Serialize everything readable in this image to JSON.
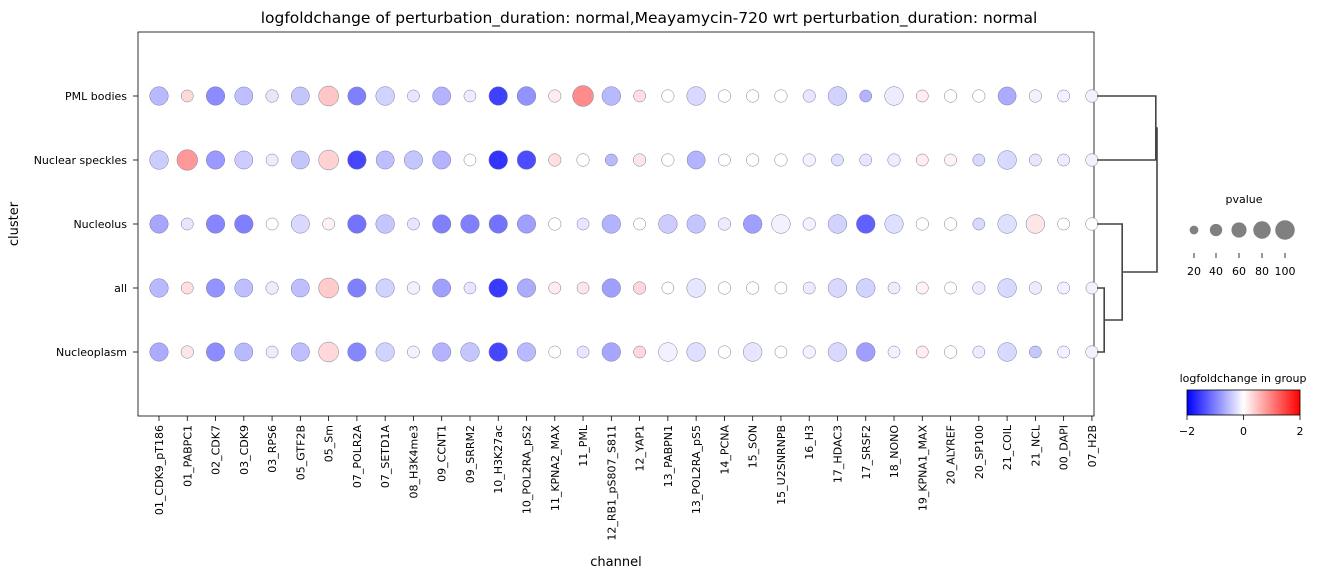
{
  "chart_data": {
    "type": "dotplot",
    "title": "logfoldchange of perturbation_duration: normal,Meayamycin-720 wrt perturbation_duration: normal",
    "xlabel": "channel",
    "ylabel": "cluster",
    "categories": [
      "01_CDK9_pT186",
      "01_PABPC1",
      "02_CDK7",
      "03_CDK9",
      "03_RPS6",
      "05_GTF2B",
      "05_Sm",
      "07_POLR2A",
      "07_SETD1A",
      "08_H3K4me3",
      "09_CCNT1",
      "09_SRRM2",
      "10_H3K27ac",
      "10_POL2RA_pS2",
      "11_KPNA2_MAX",
      "11_PML",
      "12_RB1_pS807_S811",
      "12_YAP1",
      "13_PABPN1",
      "13_POL2RA_pS5",
      "14_PCNA",
      "15_SON",
      "15_U2SNRNPB",
      "16_H3",
      "17_HDAC3",
      "17_SRSF2",
      "18_NONO",
      "19_KPNA1_MAX",
      "20_ALYREF",
      "20_SP100",
      "21_COIL",
      "21_NCL",
      "00_DAPI",
      "07_H2B"
    ],
    "rows": [
      {
        "name": "PML bodies",
        "sizes": [
          65,
          28,
          65,
          62,
          30,
          62,
          75,
          62,
          66,
          28,
          62,
          28,
          65,
          66,
          30,
          82,
          66,
          28,
          30,
          66,
          30,
          30,
          30,
          30,
          66,
          28,
          66,
          28,
          30,
          30,
          62,
          30,
          28,
          30
        ],
        "values": [
          -0.55,
          0.3,
          -0.9,
          -0.5,
          -0.2,
          -0.45,
          0.45,
          -1.0,
          -0.35,
          -0.2,
          -0.6,
          -0.15,
          -1.5,
          -0.85,
          0.15,
          0.9,
          -0.55,
          0.25,
          0,
          -0.3,
          0,
          0,
          0,
          -0.2,
          -0.35,
          -0.6,
          -0.15,
          0.15,
          0,
          0,
          -0.65,
          -0.1,
          -0.1,
          -0.1
        ]
      },
      {
        "name": "Nuclear speckles",
        "sizes": [
          66,
          80,
          64,
          62,
          28,
          62,
          75,
          65,
          62,
          64,
          62,
          28,
          66,
          66,
          30,
          30,
          28,
          30,
          30,
          62,
          28,
          30,
          30,
          30,
          28,
          28,
          30,
          28,
          28,
          28,
          66,
          28,
          28,
          30
        ],
        "values": [
          -0.4,
          0.8,
          -0.8,
          -0.4,
          -0.15,
          -0.45,
          0.35,
          -1.45,
          -0.5,
          -0.45,
          -0.6,
          0,
          -1.6,
          -1.4,
          0.25,
          0,
          -0.55,
          0.2,
          0,
          -0.6,
          0,
          0,
          0,
          -0.1,
          -0.25,
          -0.2,
          -0.15,
          0.15,
          0.1,
          -0.3,
          -0.3,
          -0.2,
          -0.15,
          -0.1
        ]
      },
      {
        "name": "Nucleolus",
        "sizes": [
          64,
          28,
          65,
          65,
          28,
          64,
          28,
          65,
          66,
          28,
          64,
          65,
          64,
          64,
          30,
          28,
          65,
          28,
          66,
          64,
          30,
          66,
          66,
          30,
          66,
          66,
          65,
          30,
          30,
          28,
          66,
          66,
          28,
          30
        ],
        "values": [
          -0.7,
          -0.2,
          -0.95,
          -1.0,
          0,
          -0.3,
          0.1,
          -1.1,
          -0.45,
          -0.2,
          -1.0,
          -1.0,
          -1.1,
          -0.75,
          0,
          -0.2,
          -0.6,
          0,
          -0.4,
          -0.45,
          -0.15,
          -0.75,
          -0.1,
          -0.1,
          -0.35,
          -1.25,
          -0.25,
          0,
          0,
          -0.3,
          -0.25,
          0.2,
          0,
          0
        ]
      },
      {
        "name": "all",
        "sizes": [
          65,
          28,
          64,
          62,
          30,
          62,
          75,
          64,
          64,
          30,
          62,
          28,
          66,
          64,
          28,
          28,
          65,
          30,
          28,
          66,
          30,
          30,
          28,
          28,
          66,
          66,
          28,
          28,
          28,
          30,
          66,
          30,
          28,
          28
        ],
        "values": [
          -0.55,
          0.25,
          -0.85,
          -0.5,
          -0.15,
          -0.5,
          0.4,
          -1.0,
          -0.35,
          -0.1,
          -0.75,
          -0.2,
          -1.55,
          -0.65,
          0.15,
          0.2,
          -0.75,
          0.3,
          0,
          -0.2,
          0,
          0,
          0,
          -0.15,
          -0.3,
          -0.35,
          -0.15,
          0.1,
          0,
          -0.15,
          -0.3,
          -0.15,
          -0.1,
          -0.1
        ]
      },
      {
        "name": "Nucleoplasm",
        "sizes": [
          64,
          30,
          64,
          62,
          28,
          64,
          75,
          64,
          65,
          28,
          64,
          66,
          65,
          64,
          28,
          28,
          65,
          28,
          66,
          66,
          30,
          66,
          28,
          30,
          66,
          66,
          28,
          28,
          30,
          28,
          66,
          28,
          28,
          30
        ],
        "values": [
          -0.65,
          0.2,
          -0.9,
          -0.55,
          -0.15,
          -0.5,
          0.3,
          -0.95,
          -0.35,
          -0.1,
          -0.6,
          -0.45,
          -1.45,
          -0.55,
          0,
          -0.2,
          -0.7,
          0.3,
          -0.1,
          -0.25,
          0,
          -0.2,
          0,
          -0.1,
          -0.3,
          -0.75,
          -0.1,
          0.15,
          0,
          -0.15,
          -0.3,
          -0.45,
          -0.1,
          -0.1
        ]
      }
    ],
    "colorbar": {
      "label": "logfoldchange in group",
      "min": -2,
      "max": 2,
      "ticks": [
        "-2",
        "0",
        "2"
      ],
      "colors": [
        "#0000ff",
        "#ffffff",
        "#ff0000"
      ]
    },
    "size_legend": {
      "title": "pvalue",
      "values": [
        20,
        40,
        60,
        80,
        100
      ],
      "labels": [
        "20",
        "40",
        "60",
        "80",
        "100"
      ],
      "color": "#808080"
    },
    "dendrogram": {
      "color": "#444444",
      "leaf_order": [
        "PML bodies",
        "Nuclear speckles",
        "Nucleolus",
        "all",
        "Nucleoplasm"
      ],
      "merges": [
        {
          "left": "all",
          "right": "Nucleoplasm",
          "height": 0.12
        },
        {
          "left": "Nucleolus",
          "right": "all+Nucleoplasm",
          "height": 0.42
        },
        {
          "left": "PML bodies",
          "right": "Nuclear speckles",
          "height": 0.98
        },
        {
          "left": "PML bodies+Nuclear speckles",
          "right": "Nucleolus+all+Nucleoplasm",
          "height": 1.0
        }
      ]
    }
  }
}
